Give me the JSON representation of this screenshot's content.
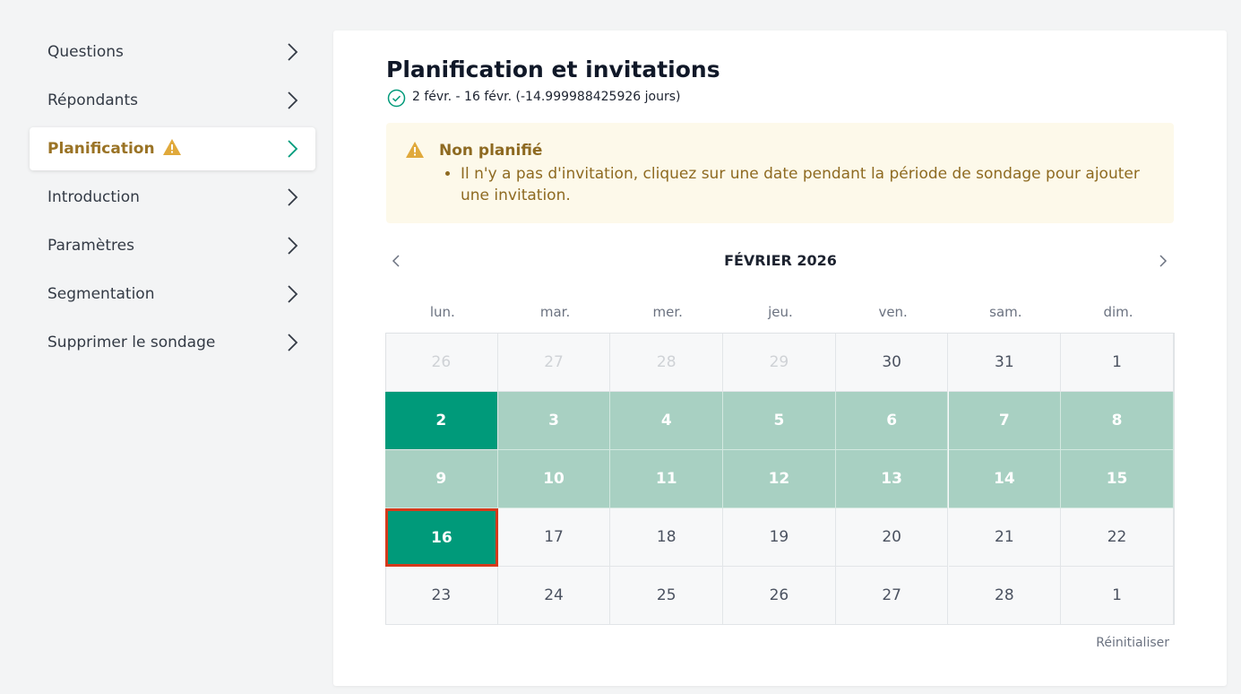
{
  "sidebar": {
    "items": [
      "Questions",
      "Répondants",
      "Planification",
      "Introduction",
      "Paramètres",
      "Segmentation",
      "Supprimer le sondage"
    ]
  },
  "panel": {
    "title": "Planification et invitations",
    "range": "2 févr. - 16 févr. (-14.999988425926 jours)"
  },
  "alert": {
    "title": "Non planifié",
    "items": [
      "Il n'y a pas d'invitation, cliquez sur une date pendant la période de sondage pour ajouter une invitation."
    ]
  },
  "calendar": {
    "month": "FÉVRIER 2026",
    "weekdays": [
      "lun.",
      "mar.",
      "mer.",
      "jeu.",
      "ven.",
      "sam.",
      "dim."
    ],
    "weeks": [
      [
        26,
        27,
        28,
        29,
        30,
        31,
        1
      ],
      [
        2,
        3,
        4,
        5,
        6,
        7,
        8
      ],
      [
        9,
        10,
        11,
        12,
        13,
        14,
        15
      ],
      [
        16,
        17,
        18,
        19,
        20,
        21,
        22
      ],
      [
        23,
        24,
        25,
        26,
        27,
        28,
        1
      ]
    ],
    "reset": "Réinitialiser"
  }
}
